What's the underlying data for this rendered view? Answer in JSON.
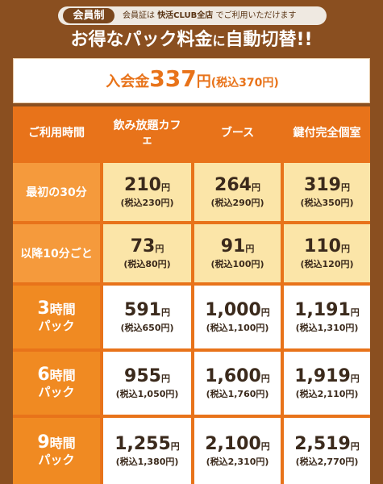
{
  "header": {
    "member_tag": "会員制",
    "member_note_pre": "会員証は ",
    "member_note_bold": "快活CLUB全店",
    "member_note_post": " でご利用いただけます",
    "headline_a": "お得なパック料金",
    "headline_b": "に",
    "headline_c": "自動切替!!"
  },
  "entry_fee": {
    "label": "入会金",
    "amount": "337",
    "unit": "円",
    "tax": "(税込370円)"
  },
  "table": {
    "header": {
      "label": "ご利用時間",
      "cols": [
        "飲み放題カフェ",
        "ブース",
        "鍵付完全個室"
      ]
    },
    "rows": [
      {
        "label": "最初の30分",
        "style": "cream",
        "cells": [
          {
            "price": "210",
            "yen": "円",
            "tax": "(税込230円)"
          },
          {
            "price": "264",
            "yen": "円",
            "tax": "(税込290円)"
          },
          {
            "price": "319",
            "yen": "円",
            "tax": "(税込350円)"
          }
        ]
      },
      {
        "label": "以降10分ごと",
        "style": "cream",
        "cells": [
          {
            "price": "73",
            "yen": "円",
            "tax": "(税込80円)"
          },
          {
            "price": "91",
            "yen": "円",
            "tax": "(税込100円)"
          },
          {
            "price": "110",
            "yen": "円",
            "tax": "(税込120円)"
          }
        ]
      },
      {
        "hours_num": "3",
        "hours_unit": "時間",
        "pack": "パック",
        "style": "white",
        "cells": [
          {
            "price": "591",
            "yen": "円",
            "tax": "(税込650円)"
          },
          {
            "price": "1,000",
            "yen": "円",
            "tax": "(税込1,100円)"
          },
          {
            "price": "1,191",
            "yen": "円",
            "tax": "(税込1,310円)"
          }
        ]
      },
      {
        "hours_num": "6",
        "hours_unit": "時間",
        "pack": "パック",
        "style": "white",
        "cells": [
          {
            "price": "955",
            "yen": "円",
            "tax": "(税込1,050円)"
          },
          {
            "price": "1,600",
            "yen": "円",
            "tax": "(税込1,760円)"
          },
          {
            "price": "1,919",
            "yen": "円",
            "tax": "(税込2,110円)"
          }
        ]
      },
      {
        "hours_num": "9",
        "hours_unit": "時間",
        "pack": "パック",
        "style": "white",
        "cells": [
          {
            "price": "1,255",
            "yen": "円",
            "tax": "(税込1,380円)"
          },
          {
            "price": "2,100",
            "yen": "円",
            "tax": "(税込2,310円)"
          },
          {
            "price": "2,519",
            "yen": "円",
            "tax": "(税込2,770円)"
          }
        ]
      }
    ]
  },
  "colors": {
    "brown": "#8a4f20",
    "orange": "#e8731a",
    "cream": "#fbe5a8",
    "label_orange": "#f59a3c"
  }
}
